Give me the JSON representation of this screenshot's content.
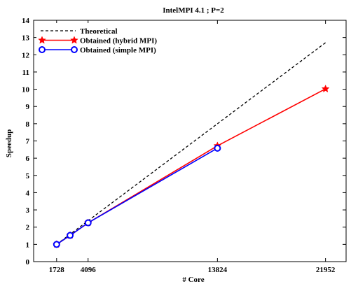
{
  "chart_data": {
    "type": "line",
    "title": "IntelMPI 4.1 ; P=2",
    "xlabel": "# Core",
    "ylabel": "Speedup",
    "xlim": [
      0,
      23500
    ],
    "ylim": [
      0,
      14
    ],
    "x_ticks": [
      1728,
      4096,
      13824,
      21952
    ],
    "y_ticks": [
      0,
      1,
      2,
      3,
      4,
      5,
      6,
      7,
      8,
      9,
      10,
      11,
      12,
      13,
      14
    ],
    "grid": false,
    "legend_position": "top-left",
    "series": [
      {
        "name": "Theoretical",
        "style": "dashed",
        "color": "#000000",
        "marker": "none",
        "points": [
          [
            1728,
            1.0
          ],
          [
            21952,
            12.7
          ]
        ]
      },
      {
        "name": "Obtained (hybrid MPI)",
        "style": "solid",
        "color": "#ff0000",
        "marker": "star",
        "points": [
          [
            1728,
            1.0
          ],
          [
            2744,
            1.52
          ],
          [
            4096,
            2.25
          ],
          [
            13824,
            6.72
          ],
          [
            21952,
            10.02
          ]
        ]
      },
      {
        "name": "Obtained (simple MPI)",
        "style": "solid",
        "color": "#0000ff",
        "marker": "circle",
        "points": [
          [
            1728,
            1.0
          ],
          [
            2744,
            1.52
          ],
          [
            4096,
            2.25
          ],
          [
            13824,
            6.58
          ]
        ]
      }
    ]
  }
}
